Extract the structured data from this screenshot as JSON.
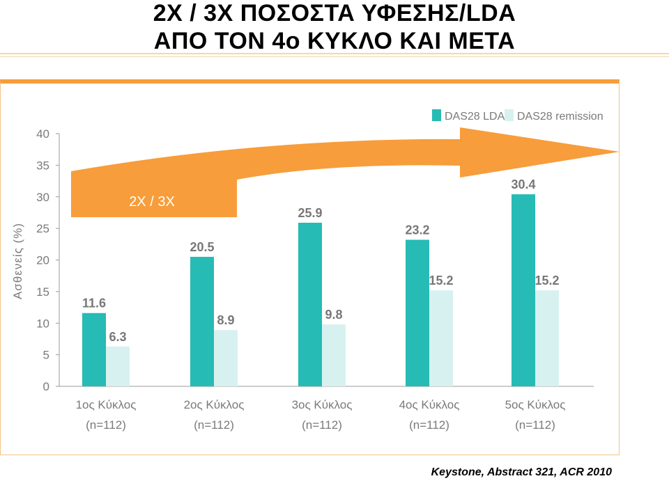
{
  "page": {
    "title_line1": "2X / 3X  ΠΟΣΟΣΤΑ ΥΦΕΣΗΣ/LDA",
    "title_line2": "ΑΠΟ ΤΟΝ 4ο  ΚΥΚΛΟ ΚΑΙ ΜΕΤΑ",
    "source": "Keystone, Abstract 321, ACR 2010",
    "arrow_label": "2X / 3X"
  },
  "colors": {
    "lda": "#26bbb5",
    "remission": "#d7f1f0",
    "arrow": "#f79d3b",
    "axis_text": "#7a7a7a",
    "label_text": "#777777"
  },
  "chart_data": {
    "type": "bar",
    "ylabel": "Ασθενείς (%)",
    "ylim": [
      0,
      40
    ],
    "yticks": [
      0,
      5,
      10,
      15,
      20,
      25,
      30,
      35,
      40
    ],
    "grid": false,
    "legend_position": "top-right",
    "categories": [
      {
        "line1": "1ος Κύκλος",
        "line2": "(n=112)"
      },
      {
        "line1": "2ος Κύκλος",
        "line2": "(n=112)"
      },
      {
        "line1": "3ος Κύκλος",
        "line2": "(n=112)"
      },
      {
        "line1": "4ος Κύκλος",
        "line2": "(n=112)"
      },
      {
        "line1": "5ος Κύκλος",
        "line2": "(n=112)"
      }
    ],
    "series": [
      {
        "name": "DAS28 LDA",
        "values": [
          11.6,
          20.5,
          25.9,
          23.2,
          30.4
        ]
      },
      {
        "name": "DAS28 remission",
        "values": [
          6.3,
          8.9,
          9.8,
          15.2,
          15.2
        ]
      }
    ]
  }
}
